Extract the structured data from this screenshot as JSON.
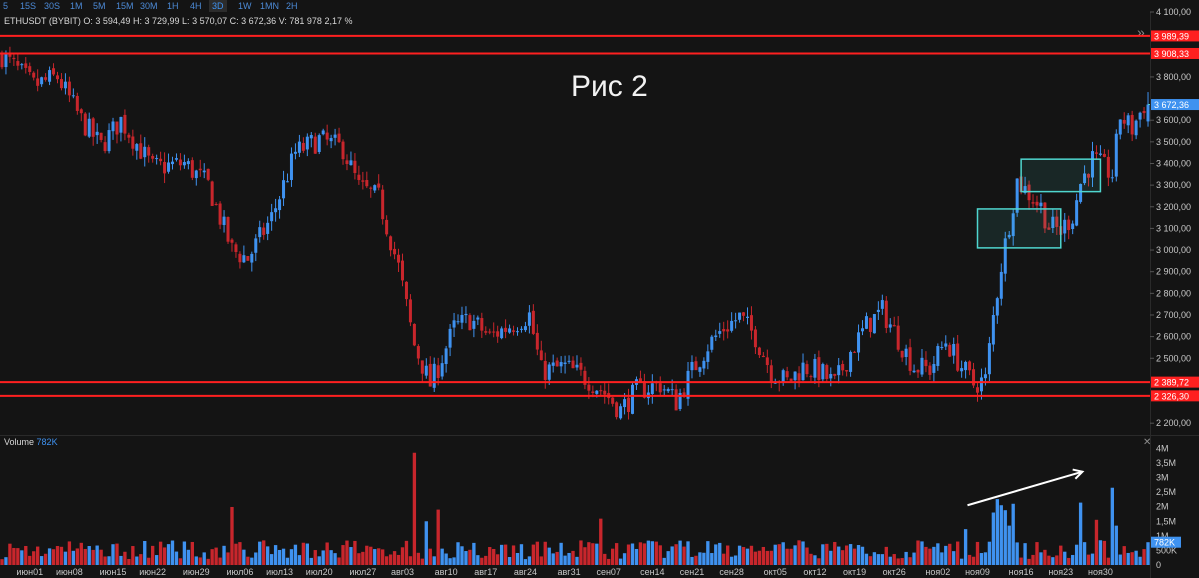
{
  "toolbar": {
    "timeframes": [
      "5",
      "15S",
      "30S",
      "1M",
      "5M",
      "15M",
      "30M",
      "1H",
      "4H",
      "3D",
      "1W",
      "1MN",
      "2H"
    ],
    "active": "3D"
  },
  "legend": {
    "symbol": "ETHUSDT (BYBIT)",
    "o_label": "O:",
    "o": "3 594,49",
    "h_label": "H:",
    "h": "3 729,99",
    "l_label": "L:",
    "l": "3 570,07",
    "c_label": "C:",
    "c": "3 672,36",
    "v_label": "V:",
    "v": "781 978",
    "change": "2,17 %"
  },
  "caption": "Рис 2",
  "volume_legend": {
    "label": "Volume",
    "value": "782K"
  },
  "colors": {
    "bull": "#3f92f0",
    "bear": "#c8262c",
    "level": "#ff2020",
    "box": "#4fd6cf",
    "bg": "#141414"
  },
  "icons": {
    "expand": "double-chevron-right-icon",
    "close": "close-icon"
  },
  "chart_data": [
    {
      "type": "candlestick",
      "y_range": [
        2150,
        4100
      ],
      "price_ticks": [
        "4 100,00",
        "4 000,00",
        "3 800,00",
        "3 700,00",
        "3 600,00",
        "3 500,00",
        "3 400,00",
        "3 300,00",
        "3 200,00",
        "3 100,00",
        "3 000,00",
        "2 900,00",
        "2 800,00",
        "2 700,00",
        "2 600,00",
        "2 500,00",
        "2 400,00",
        "2 300,00",
        "2 200,00"
      ],
      "price_tick_values": [
        4100,
        4000,
        3800,
        3700,
        3600,
        3500,
        3400,
        3300,
        3200,
        3100,
        3000,
        2900,
        2800,
        2700,
        2600,
        2500,
        2400,
        2300,
        2200
      ],
      "last_price": {
        "label": "3 672,36",
        "value": 3672.36
      },
      "levels": [
        {
          "label": "3 989,39",
          "value": 3989.39
        },
        {
          "label": "3 908,33",
          "value": 3908.33
        },
        {
          "label": "2 389,72",
          "value": 2389.72
        },
        {
          "label": "2 326,30",
          "value": 2326.3
        }
      ],
      "zones": [
        {
          "from": "ноя09",
          "to": "ноя23",
          "low": 3010,
          "high": 3190
        },
        {
          "from": "ноя16",
          "to": "ноя30",
          "low": 3270,
          "high": 3420
        }
      ],
      "anchors": [
        [
          0,
          3900
        ],
        [
          8,
          3760
        ],
        [
          14,
          3800
        ],
        [
          20,
          3600
        ],
        [
          25,
          3480
        ],
        [
          30,
          3600
        ],
        [
          38,
          3380
        ],
        [
          46,
          3400
        ],
        [
          52,
          3300
        ],
        [
          58,
          3000
        ],
        [
          62,
          2960
        ],
        [
          68,
          3150
        ],
        [
          74,
          3450
        ],
        [
          80,
          3510
        ],
        [
          86,
          3470
        ],
        [
          90,
          3290
        ],
        [
          95,
          3240
        ],
        [
          100,
          2920
        ],
        [
          104,
          2560
        ],
        [
          108,
          2380
        ],
        [
          110,
          2460
        ],
        [
          114,
          2640
        ],
        [
          118,
          2680
        ],
        [
          123,
          2600
        ],
        [
          128,
          2650
        ],
        [
          133,
          2700
        ],
        [
          136,
          2440
        ],
        [
          142,
          2460
        ],
        [
          148,
          2400
        ],
        [
          152,
          2340
        ],
        [
          156,
          2260
        ],
        [
          160,
          2350
        ],
        [
          166,
          2380
        ],
        [
          170,
          2300
        ],
        [
          174,
          2440
        ],
        [
          178,
          2560
        ],
        [
          182,
          2640
        ],
        [
          186,
          2690
        ],
        [
          190,
          2600
        ],
        [
          194,
          2440
        ],
        [
          198,
          2390
        ],
        [
          202,
          2460
        ],
        [
          206,
          2440
        ],
        [
          210,
          2380
        ],
        [
          214,
          2530
        ],
        [
          218,
          2650
        ],
        [
          222,
          2720
        ],
        [
          226,
          2590
        ],
        [
          230,
          2460
        ],
        [
          234,
          2450
        ],
        [
          238,
          2580
        ],
        [
          242,
          2460
        ],
        [
          245,
          2380
        ],
        [
          248,
          2400
        ],
        [
          250,
          2690
        ],
        [
          252,
          2930
        ],
        [
          256,
          3320
        ],
        [
          259,
          3260
        ],
        [
          262,
          3200
        ],
        [
          264,
          3110
        ],
        [
          267,
          3090
        ],
        [
          270,
          3160
        ],
        [
          272,
          3310
        ],
        [
          275,
          3420
        ],
        [
          280,
          3350
        ],
        [
          282,
          3620
        ],
        [
          285,
          3560
        ],
        [
          288,
          3672
        ]
      ],
      "volume": {
        "ticks": [
          "4M",
          "3,5M",
          "3M",
          "2,5M",
          "2M",
          "1,5M",
          "1M",
          "500K",
          "0"
        ],
        "tick_values": [
          4000000,
          3500000,
          3000000,
          2500000,
          2000000,
          1500000,
          1000000,
          500000,
          0
        ],
        "y_range": [
          0,
          4150000
        ],
        "last": {
          "label": "782K",
          "value": 782000
        },
        "spikes": [
          {
            "bar": 58,
            "value": 1990000
          },
          {
            "bar": 104,
            "value": 3850000
          },
          {
            "bar": 107,
            "value": 1500000
          },
          {
            "bar": 110,
            "value": 1900000
          },
          {
            "bar": 151,
            "value": 1590000
          },
          {
            "bar": 243,
            "value": 1230000
          },
          {
            "bar": 250,
            "value": 1800000
          },
          {
            "bar": 251,
            "value": 2260000
          },
          {
            "bar": 252,
            "value": 2050000
          },
          {
            "bar": 253,
            "value": 1880000
          },
          {
            "bar": 254,
            "value": 1350000
          },
          {
            "bar": 255,
            "value": 2100000
          },
          {
            "bar": 272,
            "value": 2140000
          },
          {
            "bar": 276,
            "value": 1550000
          },
          {
            "bar": 280,
            "value": 2650000
          },
          {
            "bar": 281,
            "value": 1350000
          }
        ]
      },
      "x_ticks": [
        "июн01",
        "июн08",
        "июн15",
        "июн22",
        "июн29",
        "июл06",
        "июл13",
        "июл20",
        "июл27",
        "авг03",
        "авг10",
        "авг17",
        "авг24",
        "авг31",
        "сен07",
        "сен14",
        "сен21",
        "сен28",
        "окт05",
        "окт12",
        "окт19",
        "окт26",
        "ноя02",
        "ноя09",
        "ноя16",
        "ноя23",
        "ноя30"
      ],
      "x_tick_bars": [
        7,
        17,
        28,
        38,
        49,
        60,
        70,
        80,
        91,
        101,
        112,
        122,
        132,
        143,
        153,
        164,
        174,
        184,
        195,
        205,
        215,
        225,
        236,
        246,
        257,
        267,
        277
      ],
      "trend_arrow": {
        "from": "ноя09",
        "to": "ноя30"
      }
    }
  ]
}
